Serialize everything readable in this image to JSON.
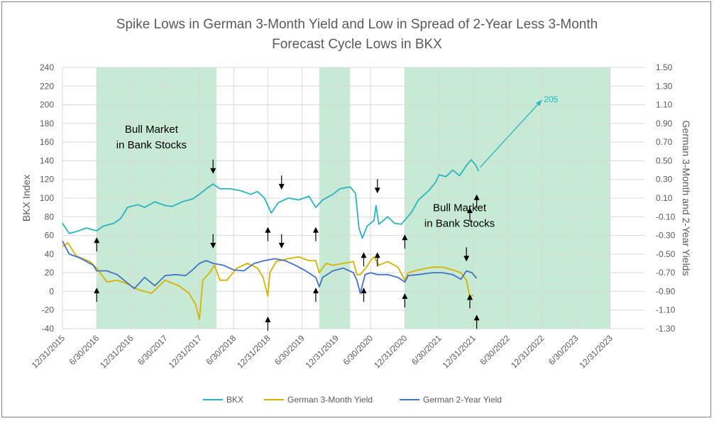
{
  "chart_data": {
    "type": "line",
    "title_line1": "Spike Lows in German 3-Month Yield and Low in Spread of 2-Year Less 3-Month",
    "title_line2": "Forecast Cycle Lows in BKX",
    "ylabel_left": "BKX Index",
    "ylabel_right": "German 3-Month and 2-Year Yields",
    "left_axis": {
      "min": -40,
      "max": 240,
      "step": 20,
      "ticks": [
        "-40",
        "-20",
        "0",
        "20",
        "40",
        "60",
        "80",
        "100",
        "120",
        "140",
        "160",
        "180",
        "200",
        "220",
        "240"
      ]
    },
    "right_axis": {
      "min": -1.3,
      "max": 1.5,
      "ticks": [
        "-1.30",
        "-1.10",
        "-0.90",
        "-0.70",
        "-0.50",
        "-0.30",
        "-0.10",
        "0.10",
        "0.30",
        "0.50",
        "0.70",
        "0.90",
        "1.10",
        "1.30",
        "1.50"
      ]
    },
    "x_axis": {
      "min": 2015.0,
      "max": 2023.5,
      "ticks": [
        {
          "label": "12/31/2015",
          "x": 2015.0
        },
        {
          "label": "6/30/2016",
          "x": 2015.5
        },
        {
          "label": "12/31/2016",
          "x": 2016.0
        },
        {
          "label": "6/30/2017",
          "x": 2016.5
        },
        {
          "label": "12/31/2017",
          "x": 2017.0
        },
        {
          "label": "6/30/2018",
          "x": 2017.5
        },
        {
          "label": "12/31/2018",
          "x": 2018.0
        },
        {
          "label": "6/30/2019",
          "x": 2018.5
        },
        {
          "label": "12/31/2019",
          "x": 2019.0
        },
        {
          "label": "6/30/2020",
          "x": 2019.5
        },
        {
          "label": "12/31/2020",
          "x": 2020.0
        },
        {
          "label": "6/30/2021",
          "x": 2020.5
        },
        {
          "label": "12/31/2021",
          "x": 2021.0
        },
        {
          "label": "6/30/2022",
          "x": 2021.5
        },
        {
          "label": "12/31/2022",
          "x": 2022.0
        },
        {
          "label": "6/30/2023",
          "x": 2022.5
        },
        {
          "label": "12/31/2023",
          "x": 2023.0
        }
      ]
    },
    "grid": true,
    "legend_position": "bottom",
    "bull_zones": [
      [
        2015.5,
        2017.25
      ],
      [
        2018.75,
        2019.2
      ],
      [
        2020.0,
        2023.0
      ]
    ],
    "series": [
      {
        "name": "BKX",
        "axis": "left",
        "color": "#2bb3c0",
        "points": [
          [
            2015.0,
            73
          ],
          [
            2015.1,
            62
          ],
          [
            2015.2,
            64
          ],
          [
            2015.35,
            68
          ],
          [
            2015.5,
            65
          ],
          [
            2015.6,
            70
          ],
          [
            2015.75,
            73
          ],
          [
            2015.85,
            78
          ],
          [
            2015.95,
            90
          ],
          [
            2016.1,
            93
          ],
          [
            2016.2,
            90
          ],
          [
            2016.35,
            96
          ],
          [
            2016.5,
            92
          ],
          [
            2016.6,
            91
          ],
          [
            2016.75,
            96
          ],
          [
            2016.9,
            99
          ],
          [
            2017.0,
            104
          ],
          [
            2017.1,
            110
          ],
          [
            2017.2,
            115
          ],
          [
            2017.3,
            110
          ],
          [
            2017.45,
            110
          ],
          [
            2017.6,
            108
          ],
          [
            2017.75,
            104
          ],
          [
            2017.85,
            107
          ],
          [
            2017.95,
            100
          ],
          [
            2018.05,
            84
          ],
          [
            2018.15,
            95
          ],
          [
            2018.3,
            100
          ],
          [
            2018.45,
            98
          ],
          [
            2018.6,
            102
          ],
          [
            2018.7,
            90
          ],
          [
            2018.8,
            98
          ],
          [
            2018.95,
            104
          ],
          [
            2019.05,
            110
          ],
          [
            2019.2,
            112
          ],
          [
            2019.28,
            105
          ],
          [
            2019.33,
            68
          ],
          [
            2019.38,
            57
          ],
          [
            2019.45,
            70
          ],
          [
            2019.55,
            76
          ],
          [
            2019.58,
            92
          ],
          [
            2019.62,
            72
          ],
          [
            2019.75,
            80
          ],
          [
            2019.85,
            73
          ],
          [
            2019.95,
            72
          ],
          [
            2020.02,
            78
          ],
          [
            2020.1,
            85
          ],
          [
            2020.2,
            98
          ],
          [
            2020.35,
            108
          ],
          [
            2020.45,
            117
          ],
          [
            2020.5,
            125
          ],
          [
            2020.6,
            123
          ],
          [
            2020.7,
            130
          ],
          [
            2020.8,
            124
          ],
          [
            2020.9,
            135
          ],
          [
            2020.97,
            141
          ],
          [
            2021.03,
            136
          ],
          [
            2021.08,
            129
          ]
        ]
      },
      {
        "name": "German 3-Month Yield",
        "axis": "right",
        "color": "#d4b400",
        "points": [
          [
            2015.0,
            -0.42
          ],
          [
            2015.08,
            -0.38
          ],
          [
            2015.2,
            -0.52
          ],
          [
            2015.4,
            -0.58
          ],
          [
            2015.5,
            -0.65
          ],
          [
            2015.65,
            -0.8
          ],
          [
            2015.8,
            -0.78
          ],
          [
            2015.95,
            -0.82
          ],
          [
            2016.1,
            -0.88
          ],
          [
            2016.3,
            -0.92
          ],
          [
            2016.5,
            -0.78
          ],
          [
            2016.7,
            -0.84
          ],
          [
            2016.85,
            -0.92
          ],
          [
            2016.95,
            -1.05
          ],
          [
            2017.0,
            -1.2
          ],
          [
            2017.05,
            -0.78
          ],
          [
            2017.15,
            -0.7
          ],
          [
            2017.22,
            -0.62
          ],
          [
            2017.3,
            -0.78
          ],
          [
            2017.4,
            -0.78
          ],
          [
            2017.55,
            -0.65
          ],
          [
            2017.7,
            -0.6
          ],
          [
            2017.85,
            -0.65
          ],
          [
            2017.93,
            -0.75
          ],
          [
            2018.0,
            -0.95
          ],
          [
            2018.03,
            -0.7
          ],
          [
            2018.12,
            -0.58
          ],
          [
            2018.3,
            -0.55
          ],
          [
            2018.45,
            -0.53
          ],
          [
            2018.6,
            -0.57
          ],
          [
            2018.7,
            -0.57
          ],
          [
            2018.75,
            -0.7
          ],
          [
            2018.85,
            -0.6
          ],
          [
            2018.95,
            -0.62
          ],
          [
            2019.1,
            -0.6
          ],
          [
            2019.25,
            -0.58
          ],
          [
            2019.3,
            -0.72
          ],
          [
            2019.35,
            -0.72
          ],
          [
            2019.45,
            -0.63
          ],
          [
            2019.5,
            -0.57
          ],
          [
            2019.55,
            -0.53
          ],
          [
            2019.62,
            -0.62
          ],
          [
            2019.75,
            -0.58
          ],
          [
            2019.9,
            -0.64
          ],
          [
            2020.0,
            -0.78
          ],
          [
            2020.05,
            -0.7
          ],
          [
            2020.2,
            -0.67
          ],
          [
            2020.4,
            -0.64
          ],
          [
            2020.55,
            -0.64
          ],
          [
            2020.7,
            -0.67
          ],
          [
            2020.82,
            -0.7
          ],
          [
            2020.9,
            -0.78
          ],
          [
            2020.95,
            -0.96
          ],
          [
            2021.0,
            -0.94
          ]
        ]
      },
      {
        "name": "German 2-Year Yield",
        "axis": "right",
        "color": "#4472c4",
        "points": [
          [
            2015.0,
            -0.36
          ],
          [
            2015.1,
            -0.5
          ],
          [
            2015.25,
            -0.54
          ],
          [
            2015.45,
            -0.62
          ],
          [
            2015.5,
            -0.68
          ],
          [
            2015.65,
            -0.68
          ],
          [
            2015.8,
            -0.72
          ],
          [
            2015.9,
            -0.78
          ],
          [
            2016.05,
            -0.87
          ],
          [
            2016.2,
            -0.75
          ],
          [
            2016.35,
            -0.84
          ],
          [
            2016.5,
            -0.73
          ],
          [
            2016.65,
            -0.72
          ],
          [
            2016.8,
            -0.73
          ],
          [
            2016.9,
            -0.67
          ],
          [
            2017.0,
            -0.6
          ],
          [
            2017.1,
            -0.57
          ],
          [
            2017.2,
            -0.6
          ],
          [
            2017.35,
            -0.62
          ],
          [
            2017.5,
            -0.67
          ],
          [
            2017.65,
            -0.68
          ],
          [
            2017.8,
            -0.6
          ],
          [
            2017.95,
            -0.57
          ],
          [
            2018.1,
            -0.55
          ],
          [
            2018.25,
            -0.57
          ],
          [
            2018.4,
            -0.62
          ],
          [
            2018.55,
            -0.68
          ],
          [
            2018.7,
            -0.75
          ],
          [
            2018.75,
            -0.85
          ],
          [
            2018.8,
            -0.75
          ],
          [
            2018.95,
            -0.68
          ],
          [
            2019.1,
            -0.65
          ],
          [
            2019.25,
            -0.7
          ],
          [
            2019.3,
            -0.78
          ],
          [
            2019.35,
            -0.92
          ],
          [
            2019.42,
            -0.72
          ],
          [
            2019.5,
            -0.7
          ],
          [
            2019.6,
            -0.72
          ],
          [
            2019.75,
            -0.72
          ],
          [
            2019.9,
            -0.75
          ],
          [
            2020.0,
            -0.8
          ],
          [
            2020.05,
            -0.73
          ],
          [
            2020.2,
            -0.72
          ],
          [
            2020.4,
            -0.7
          ],
          [
            2020.55,
            -0.7
          ],
          [
            2020.7,
            -0.72
          ],
          [
            2020.82,
            -0.77
          ],
          [
            2020.9,
            -0.68
          ],
          [
            2020.98,
            -0.7
          ],
          [
            2021.05,
            -0.76
          ]
        ]
      }
    ],
    "forecast": {
      "from": [
        2021.1,
        133
      ],
      "to": [
        2022.0,
        205
      ],
      "label": "205"
    },
    "annotations": [
      {
        "text_line1": "Bull Market",
        "text_line2": "in Bank Stocks",
        "x": 2016.3,
        "y": 170
      },
      {
        "text_line1": "Bull Market",
        "text_line2": "in Bank Stocks",
        "x": 2020.8,
        "y": 86
      }
    ],
    "up_arrows": [
      [
        2015.5,
        58
      ],
      [
        2015.5,
        4
      ],
      [
        2018.0,
        69
      ],
      [
        2018.0,
        -27
      ],
      [
        2018.7,
        69
      ],
      [
        2018.7,
        4
      ],
      [
        2019.4,
        42
      ],
      [
        2019.4,
        4
      ],
      [
        2020.0,
        61
      ],
      [
        2020.0,
        -2
      ],
      [
        2020.95,
        90
      ],
      [
        2020.95,
        -3
      ],
      [
        2021.05,
        104
      ],
      [
        2021.05,
        -25
      ],
      [
        2019.6,
        42
      ]
    ],
    "down_arrows": [
      [
        2017.2,
        126
      ],
      [
        2017.2,
        46
      ],
      [
        2018.2,
        109
      ],
      [
        2018.2,
        46
      ],
      [
        2019.6,
        105
      ],
      [
        2020.9,
        32
      ]
    ],
    "legend": [
      {
        "name": "BKX",
        "color": "#2bb3c0"
      },
      {
        "name": "German 3-Month Yield",
        "color": "#d4b400"
      },
      {
        "name": "German 2-Year Yield",
        "color": "#4472c4"
      }
    ]
  }
}
